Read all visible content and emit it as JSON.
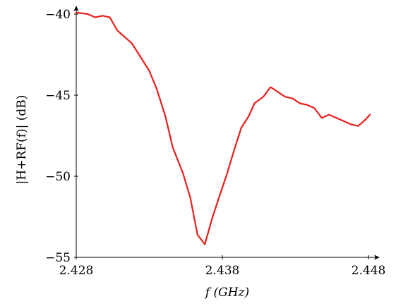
{
  "chart_data": {
    "type": "line",
    "xlabel": "f (GHz)",
    "ylabel": "|H+RF(f)| (dB)",
    "xlim": [
      2.428,
      2.448
    ],
    "ylim": [
      -55,
      -40
    ],
    "xticks": [
      2.428,
      2.438,
      2.448
    ],
    "yticks": [
      -40,
      -45,
      -50,
      -55
    ],
    "xtick_labels": [
      "2.428",
      "2.438",
      "2.448"
    ],
    "ytick_labels": [
      "−40",
      "−45",
      "−50",
      "−55"
    ],
    "grid": false,
    "series": [
      {
        "color": "#e8201c",
        "x": [
          2.428,
          2.4288,
          2.4293,
          2.4298,
          2.4303,
          2.4308,
          2.4318,
          2.4323,
          2.433,
          2.4335,
          2.4341,
          2.4346,
          2.4353,
          2.4358,
          2.4363,
          2.4368,
          2.4373,
          2.4377,
          2.4383,
          2.4388,
          2.4393,
          2.4398,
          2.4402,
          2.4408,
          2.4413,
          2.4418,
          2.4423,
          2.4428,
          2.4433,
          2.4438,
          2.4443,
          2.4448,
          2.4453,
          2.4458,
          2.4463,
          2.4468,
          2.4473,
          2.4478,
          2.4481
        ],
        "y": [
          -39.9,
          -40.0,
          -40.2,
          -40.1,
          -40.2,
          -41.0,
          -41.8,
          -42.5,
          -43.5,
          -44.6,
          -46.3,
          -48.2,
          -49.8,
          -51.3,
          -53.6,
          -54.2,
          -52.6,
          -51.5,
          -49.9,
          -48.4,
          -47.0,
          -46.3,
          -45.5,
          -45.1,
          -44.5,
          -44.8,
          -45.1,
          -45.2,
          -45.5,
          -45.6,
          -45.8,
          -46.4,
          -46.2,
          -46.4,
          -46.6,
          -46.8,
          -46.9,
          -46.5,
          -46.2
        ]
      }
    ]
  }
}
